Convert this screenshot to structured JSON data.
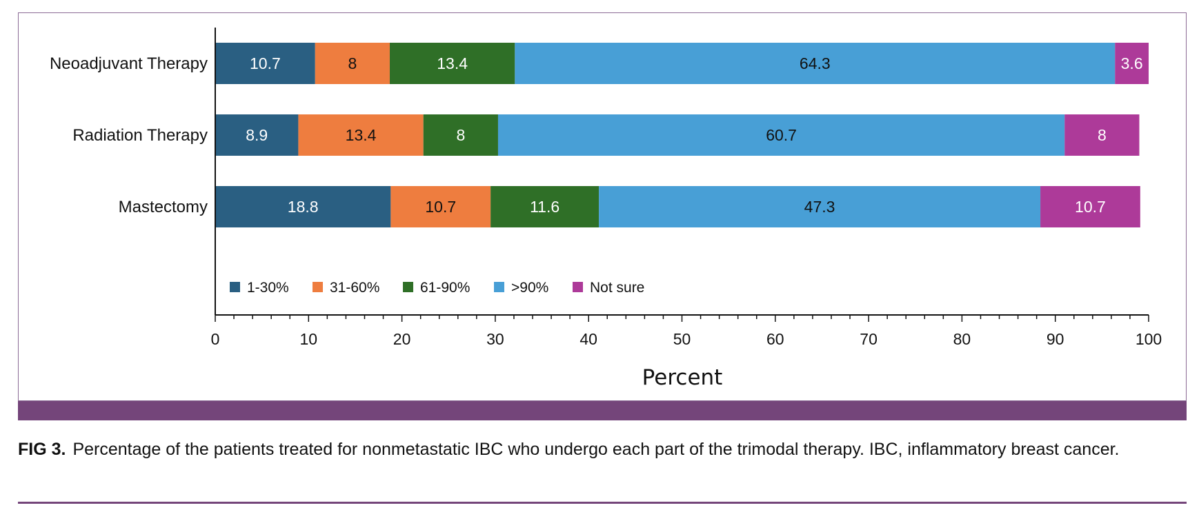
{
  "chart_data": {
    "type": "bar",
    "orientation": "horizontal",
    "stacked": true,
    "categories": [
      "Neoadjuvant Therapy",
      "Radiation Therapy",
      "Mastectomy"
    ],
    "series": [
      {
        "name": "1-30%",
        "color": "#2a5f82",
        "values": [
          10.7,
          8.9,
          18.8
        ],
        "labels": [
          "10.7",
          "8.9",
          "18.8"
        ],
        "label_color": "#ffffff"
      },
      {
        "name": "31-60%",
        "color": "#ee7d3f",
        "values": [
          8,
          13.4,
          10.7
        ],
        "labels": [
          "8",
          "13.4",
          "10.7"
        ],
        "label_color": "#111111"
      },
      {
        "name": "61-90%",
        "color": "#2f6f27",
        "values": [
          13.4,
          8,
          11.6
        ],
        "labels": [
          "13.4",
          "8",
          "11.6"
        ],
        "label_color": "#ffffff"
      },
      {
        "name": ">90%",
        "color": "#489fd6",
        "values": [
          64.3,
          60.7,
          47.3
        ],
        "labels": [
          "64.3",
          "60.7",
          "47.3"
        ],
        "label_color": "#111111"
      },
      {
        "name": "Not sure",
        "color": "#ad3a99",
        "values": [
          3.6,
          8,
          10.7
        ],
        "labels": [
          "3.6",
          "8",
          "10.7"
        ],
        "label_color": "#ffffff"
      }
    ],
    "xlim": [
      0,
      100
    ],
    "xticks": [
      "0",
      "10",
      "20",
      "30",
      "40",
      "50",
      "60",
      "70",
      "80",
      "90",
      "100"
    ],
    "xlabel": "Percent",
    "ylabel": "",
    "title": "",
    "grid": false,
    "legend_position": "bottom-left inside plot"
  },
  "caption": {
    "label": "FIG 3.",
    "text": "Percentage of the patients treated for nonmetastatic IBC who undergo each part of the trimodal therapy. IBC, inflammatory breast cancer."
  },
  "colors": {
    "frame": "#8b6a95",
    "band": "#74457a"
  }
}
